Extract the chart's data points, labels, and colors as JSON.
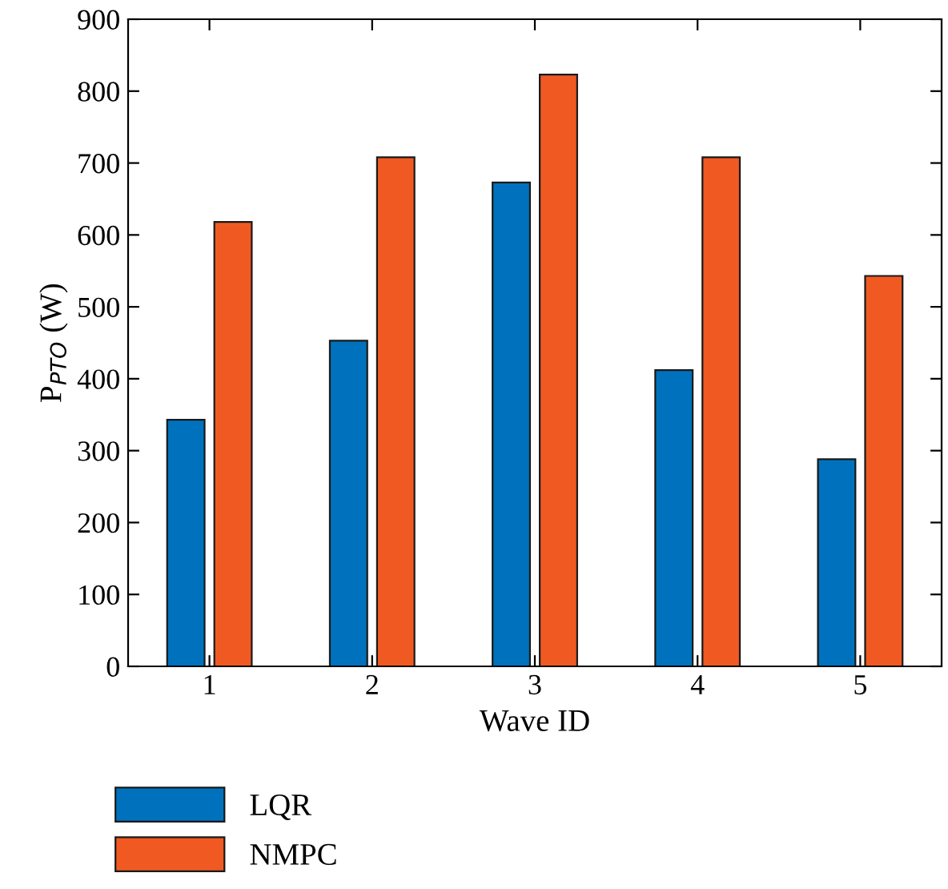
{
  "chart_data": {
    "type": "bar",
    "xlabel": "Wave ID",
    "ylabel": "P$_{PTO}$ (W)",
    "categories": [
      "1",
      "2",
      "3",
      "4",
      "5"
    ],
    "series": [
      {
        "name": "LQR",
        "color": "#0072bd",
        "values": [
          343,
          453,
          673,
          412,
          288
        ]
      },
      {
        "name": "NMPC",
        "color": "#f05a22",
        "values": [
          618,
          708,
          823,
          708,
          543
        ]
      }
    ],
    "ylim": [
      0,
      900
    ],
    "yticks": [
      0,
      100,
      200,
      300,
      400,
      500,
      600,
      700,
      800,
      900
    ],
    "grid": false,
    "legend": "bottom left"
  }
}
